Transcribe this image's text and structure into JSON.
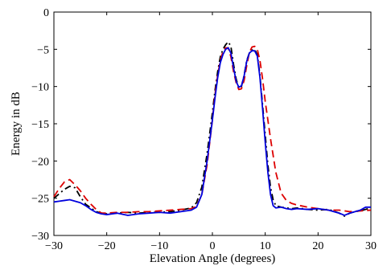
{
  "chart_data": {
    "type": "line",
    "title": "",
    "xlabel": "Elevation Angle (degrees)",
    "ylabel": "Energy in dB",
    "xlim": [
      -30,
      30
    ],
    "ylim": [
      -30,
      0
    ],
    "xticks": [
      -30,
      -20,
      -10,
      0,
      10,
      20,
      30
    ],
    "yticks": [
      0,
      -5,
      -10,
      -15,
      -20,
      -25,
      -30
    ],
    "grid": false,
    "legend": "none",
    "series": [
      {
        "color": "#000000",
        "style": "dashdot",
        "x": [
          -30,
          -29,
          -28,
          -27,
          -26,
          -25,
          -24,
          -23,
          -22,
          -21,
          -20,
          -18,
          -16,
          -14,
          -12,
          -10,
          -8,
          -6,
          -4,
          -3,
          -2,
          -1,
          0,
          0.5,
          1,
          1.5,
          2,
          2.5,
          3,
          3.5,
          4,
          4.5,
          5,
          5.5,
          6,
          6.5,
          7,
          7.5,
          8,
          8.5,
          9,
          9.5,
          10,
          10.5,
          11,
          11.5,
          12,
          13,
          14,
          15,
          16,
          18,
          20,
          22,
          24,
          25,
          26,
          27,
          28,
          29,
          30
        ],
        "values": [
          -25.0,
          -24.4,
          -23.8,
          -23.4,
          -23.6,
          -24.8,
          -25.8,
          -26.3,
          -26.8,
          -27.0,
          -27.1,
          -27.0,
          -26.9,
          -27.0,
          -26.9,
          -26.9,
          -26.8,
          -26.6,
          -26.3,
          -25.6,
          -23.5,
          -19.0,
          -13.5,
          -10.5,
          -8.0,
          -6.0,
          -5.0,
          -4.4,
          -4.0,
          -4.6,
          -7.0,
          -9.0,
          -10.2,
          -10.0,
          -8.5,
          -6.5,
          -5.5,
          -5.1,
          -5.0,
          -5.7,
          -8.5,
          -12.5,
          -16.5,
          -20.5,
          -23.5,
          -25.2,
          -26.0,
          -26.2,
          -26.3,
          -26.4,
          -26.3,
          -26.5,
          -26.6,
          -26.5,
          -27.0,
          -27.4,
          -27.0,
          -26.8,
          -26.7,
          -26.5,
          -26.3
        ]
      },
      {
        "color": "#dd0000",
        "style": "dashed",
        "x": [
          -30,
          -29,
          -28,
          -27,
          -26,
          -25,
          -24,
          -23,
          -22,
          -21,
          -20,
          -18,
          -16,
          -14,
          -12,
          -10,
          -8,
          -6,
          -4,
          -3,
          -2,
          -1,
          0,
          0.5,
          1,
          1.5,
          2,
          2.5,
          3,
          3.5,
          4,
          4.5,
          5,
          5.5,
          6,
          6.5,
          7,
          7.5,
          8,
          8.5,
          9,
          9.5,
          10,
          11,
          12,
          13,
          14,
          15,
          16,
          18,
          20,
          22,
          24,
          26,
          28,
          30
        ],
        "values": [
          -24.8,
          -23.7,
          -22.8,
          -22.5,
          -23.2,
          -24.0,
          -25.0,
          -25.8,
          -26.5,
          -27.0,
          -27.0,
          -26.9,
          -26.9,
          -26.8,
          -26.8,
          -26.7,
          -26.6,
          -26.5,
          -26.4,
          -26.1,
          -24.5,
          -20.5,
          -14.5,
          -11.0,
          -8.5,
          -6.5,
          -5.3,
          -4.8,
          -4.8,
          -6.0,
          -8.0,
          -9.5,
          -10.4,
          -10.3,
          -9.2,
          -7.2,
          -5.4,
          -4.7,
          -4.6,
          -5.0,
          -6.5,
          -9.0,
          -12.0,
          -17.0,
          -21.5,
          -24.3,
          -25.3,
          -25.7,
          -25.9,
          -26.2,
          -26.4,
          -26.6,
          -26.6,
          -26.8,
          -26.7,
          -26.6
        ]
      },
      {
        "color": "#0000dd",
        "style": "solid",
        "x": [
          -30,
          -29,
          -28,
          -27,
          -26,
          -25,
          -24,
          -23,
          -22,
          -21,
          -20,
          -18,
          -16,
          -14,
          -12,
          -10,
          -8,
          -6,
          -4,
          -3,
          -2,
          -1,
          0,
          0.5,
          1,
          1.5,
          2,
          2.5,
          3,
          3.5,
          4,
          4.5,
          5,
          5.5,
          6,
          6.5,
          7,
          7.5,
          8,
          8.5,
          9,
          9.5,
          10,
          10.5,
          11,
          11.5,
          12,
          13,
          14,
          15,
          16,
          18,
          20,
          22,
          24,
          25,
          26,
          27,
          28,
          29,
          30
        ],
        "values": [
          -25.5,
          -25.4,
          -25.3,
          -25.2,
          -25.4,
          -25.6,
          -26.0,
          -26.5,
          -26.9,
          -27.1,
          -27.2,
          -27.0,
          -27.3,
          -27.1,
          -27.0,
          -26.9,
          -27.0,
          -26.8,
          -26.6,
          -26.2,
          -24.5,
          -20.0,
          -14.5,
          -11.5,
          -8.8,
          -6.8,
          -5.7,
          -5.0,
          -4.8,
          -5.5,
          -7.5,
          -9.3,
          -10.1,
          -9.9,
          -8.6,
          -6.6,
          -5.5,
          -5.2,
          -5.2,
          -5.9,
          -8.8,
          -13.0,
          -17.5,
          -21.5,
          -24.5,
          -26.0,
          -26.3,
          -26.2,
          -26.4,
          -26.5,
          -26.4,
          -26.5,
          -26.4,
          -26.6,
          -27.0,
          -27.3,
          -27.0,
          -26.8,
          -26.6,
          -26.2,
          -26.2
        ]
      }
    ]
  }
}
